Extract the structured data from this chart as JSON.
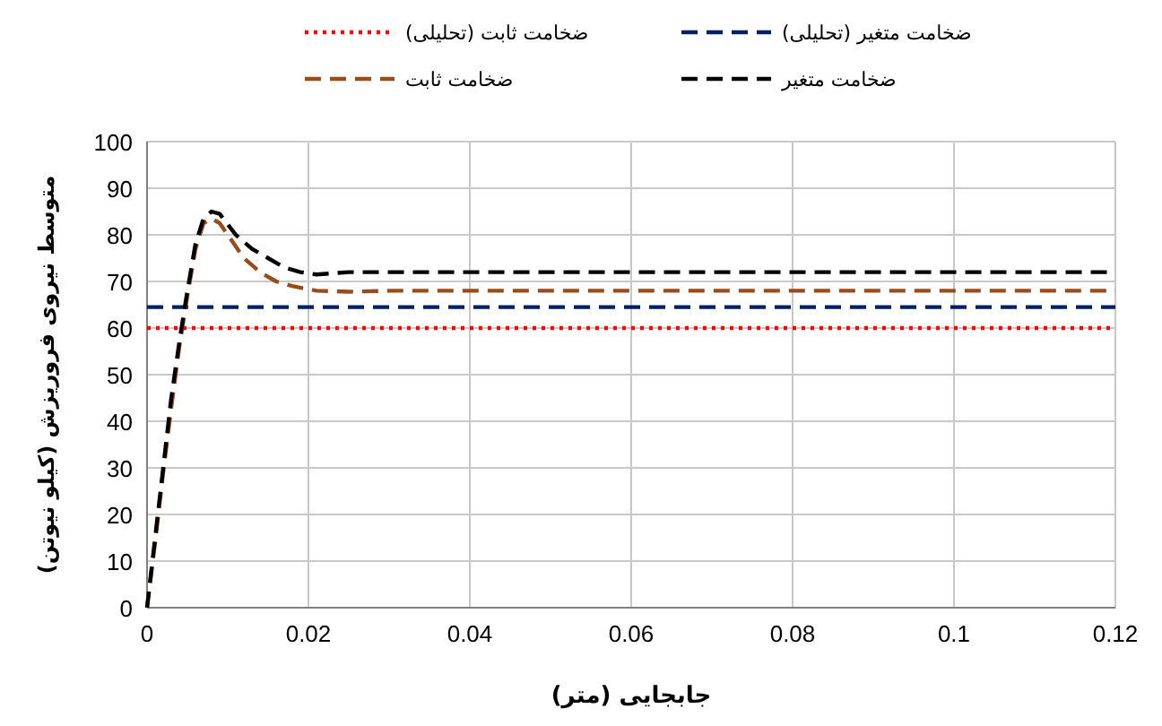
{
  "chart_data": {
    "type": "line",
    "xlabel": "جابجایی (متر)",
    "ylabel": "متوسط نیروی فروریزش (کیلو نیوتن)",
    "xlim": [
      0,
      0.12
    ],
    "ylim": [
      0,
      100
    ],
    "xticks": [
      0,
      0.02,
      0.04,
      0.06,
      0.08,
      0.1,
      0.12
    ],
    "yticks": [
      0,
      10,
      20,
      30,
      40,
      50,
      60,
      70,
      80,
      90,
      100
    ],
    "grid": true,
    "legend": "top",
    "series": [
      {
        "name": "ضخامت ثابت (تحلیلی)",
        "color": "#ff0000",
        "line_style": "dotted",
        "x": [
          0,
          0.12
        ],
        "values": [
          60,
          60
        ]
      },
      {
        "name": "ضخامت متغیر (تحلیلی)",
        "color": "#002060",
        "line_style": "dashed",
        "x": [
          0,
          0.12
        ],
        "values": [
          64.5,
          64.5
        ]
      },
      {
        "name": "ضخامت ثابت",
        "color": "#974c1b",
        "line_style": "dashed",
        "x": [
          0,
          0.001,
          0.002,
          0.003,
          0.004,
          0.005,
          0.006,
          0.007,
          0.008,
          0.009,
          0.01,
          0.012,
          0.014,
          0.016,
          0.018,
          0.021,
          0.025,
          0.03,
          0.12
        ],
        "values": [
          0,
          14,
          29,
          43,
          56,
          67,
          77,
          82.5,
          83.5,
          82.5,
          80,
          75,
          72,
          70,
          69,
          68,
          67.8,
          68,
          68
        ]
      },
      {
        "name": "ضخامت متغیر",
        "color": "#000000",
        "line_style": "dashed",
        "x": [
          0,
          0.001,
          0.002,
          0.003,
          0.004,
          0.005,
          0.006,
          0.007,
          0.008,
          0.009,
          0.011,
          0.013,
          0.015,
          0.017,
          0.019,
          0.021,
          0.025,
          0.12
        ],
        "values": [
          0,
          15,
          30,
          45,
          57,
          68,
          78,
          83.5,
          85,
          84.5,
          80,
          77,
          75,
          73,
          72,
          71.5,
          72,
          72
        ]
      }
    ]
  }
}
